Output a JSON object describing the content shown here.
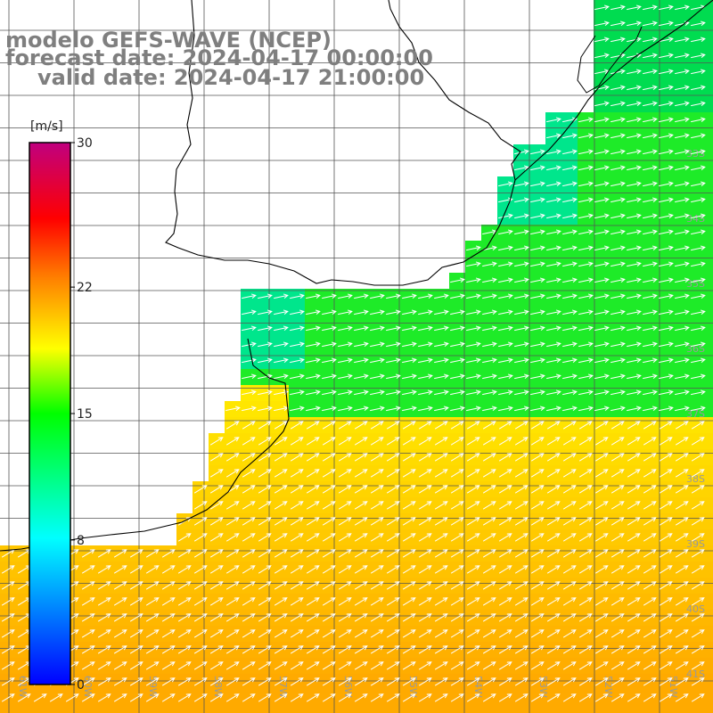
{
  "title": {
    "line1": "modelo GEFS-WAVE (NCEP)",
    "line2": "forecast date: 2024-04-17 00:00:00",
    "line3": "valid date: 2024-04-17 21:00:00"
  },
  "colorbar": {
    "unit": "[m/s]",
    "ticks": [
      "30",
      "22",
      "15",
      "8",
      "0"
    ],
    "tick_values": [
      30,
      22,
      15,
      8,
      0
    ],
    "colors": [
      "#0000ff",
      "#00ffff",
      "#00ff00",
      "#ffff00",
      "#ff8000",
      "#ff0000",
      "#c0007f"
    ]
  },
  "map": {
    "lat_labels": [
      "33S",
      "34S",
      "35S",
      "36S",
      "37S",
      "38S",
      "39S",
      "40S",
      "41S"
    ],
    "lon_labels": [
      "61W",
      "60W",
      "59W",
      "58W",
      "57W",
      "56W",
      "55W",
      "54W",
      "53W",
      "52W",
      "51W"
    ]
  }
}
